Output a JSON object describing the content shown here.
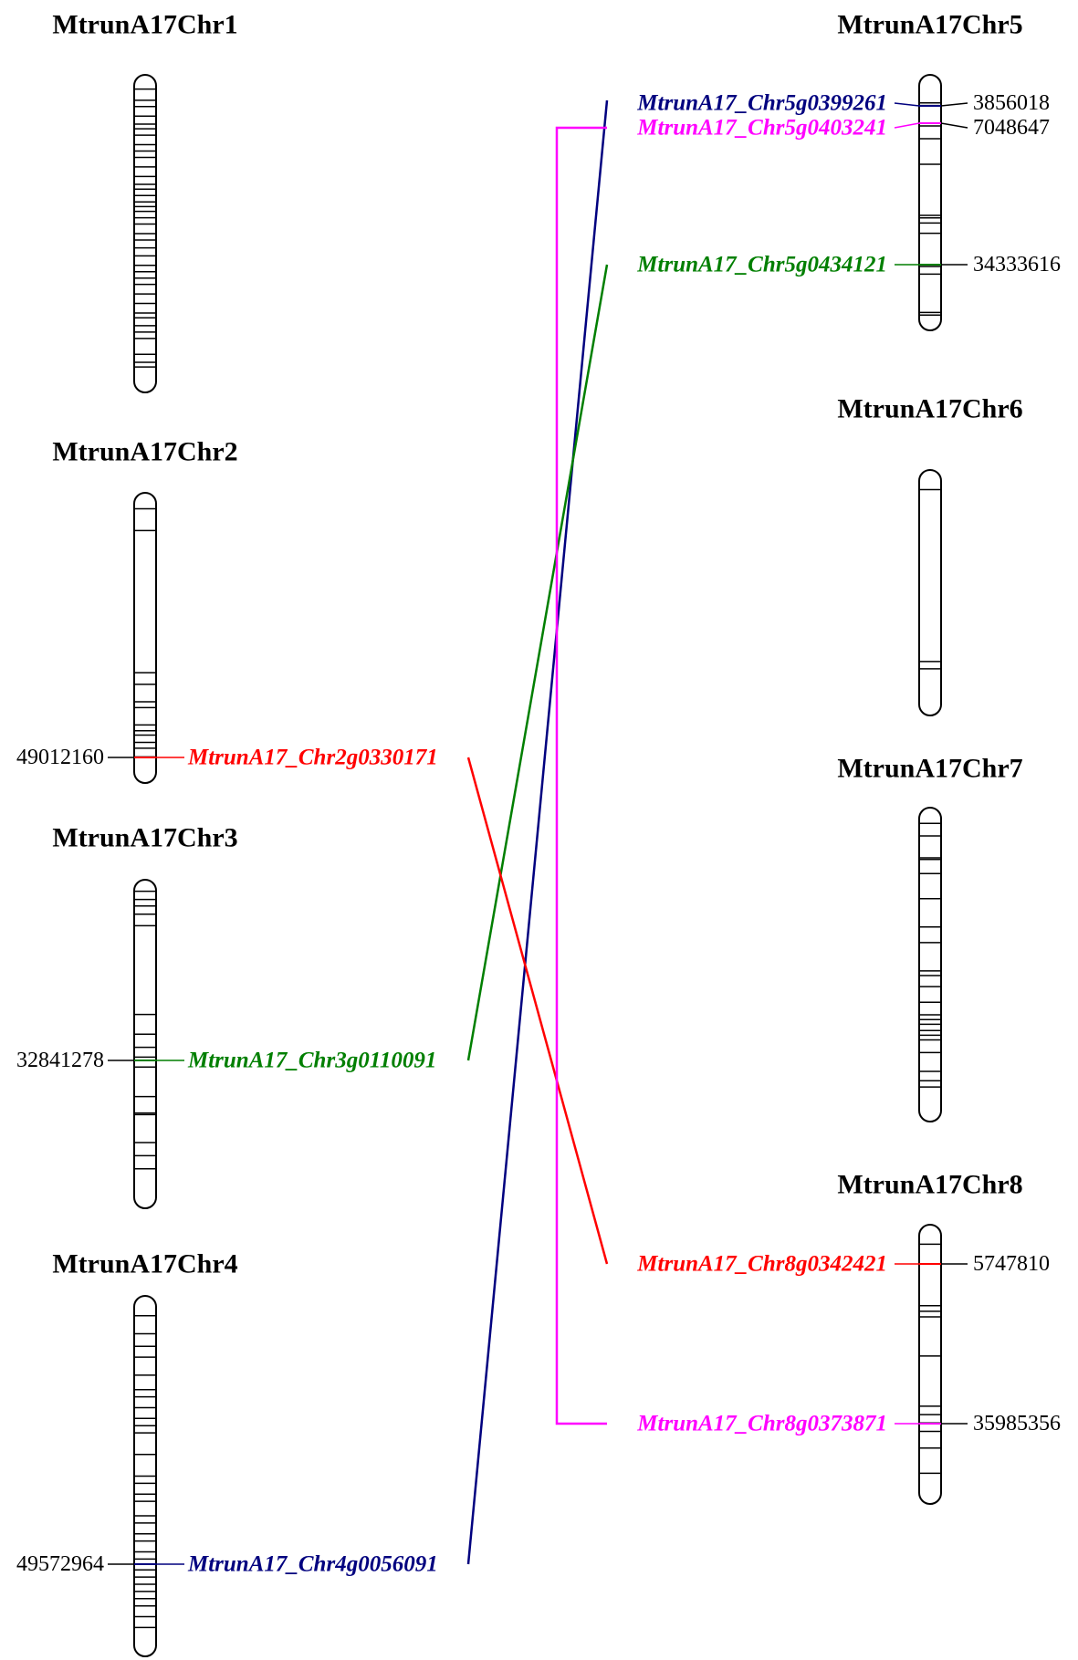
{
  "chromosomes": [
    {
      "id": "chr1",
      "name": "MtrunA17Chr1",
      "bands": [
        0.045,
        0.08,
        0.1,
        0.13,
        0.155,
        0.17,
        0.19,
        0.22,
        0.24,
        0.26,
        0.29,
        0.32,
        0.345,
        0.36,
        0.38,
        0.4,
        0.415,
        0.43,
        0.45,
        0.47,
        0.5,
        0.52,
        0.545,
        0.57,
        0.6,
        0.62,
        0.64,
        0.66,
        0.69,
        0.72,
        0.75,
        0.765,
        0.79,
        0.81,
        0.83,
        0.88,
        0.905,
        0.92
      ]
    },
    {
      "id": "chr2",
      "name": "MtrunA17Chr2",
      "bands": [
        0.055,
        0.13,
        0.62,
        0.66,
        0.72,
        0.74,
        0.8,
        0.82,
        0.835,
        0.86,
        0.88,
        0.91
      ]
    },
    {
      "id": "chr3",
      "name": "MtrunA17Chr3",
      "bands": [
        0.035,
        0.06,
        0.08,
        0.105,
        0.14,
        0.41,
        0.47,
        0.51,
        0.54,
        0.57,
        0.66,
        0.71,
        0.715,
        0.8,
        0.84,
        0.88
      ]
    },
    {
      "id": "chr4",
      "name": "MtrunA17Chr4",
      "bands": [
        0.055,
        0.105,
        0.14,
        0.17,
        0.22,
        0.26,
        0.28,
        0.31,
        0.34,
        0.36,
        0.38,
        0.44,
        0.5,
        0.52,
        0.55,
        0.57,
        0.61,
        0.63,
        0.66,
        0.68,
        0.71,
        0.73,
        0.76,
        0.78,
        0.8,
        0.82,
        0.84,
        0.86,
        0.89,
        0.92
      ]
    },
    {
      "id": "chr5",
      "name": "MtrunA17Chr5",
      "bands": [
        0.11,
        0.12,
        0.2,
        0.25,
        0.35,
        0.55,
        0.56,
        0.58,
        0.62,
        0.75,
        0.78,
        0.93,
        0.94
      ]
    },
    {
      "id": "chr6",
      "name": "MtrunA17Chr6",
      "bands": [
        0.08,
        0.78,
        0.81
      ]
    },
    {
      "id": "chr7",
      "name": "MtrunA17Chr7",
      "bands": [
        0.05,
        0.09,
        0.16,
        0.165,
        0.21,
        0.29,
        0.38,
        0.43,
        0.52,
        0.535,
        0.57,
        0.62,
        0.66,
        0.675,
        0.69,
        0.71,
        0.725,
        0.74,
        0.78,
        0.84,
        0.87,
        0.89
      ]
    },
    {
      "id": "chr8",
      "name": "MtrunA17Chr8",
      "bands": [
        0.07,
        0.14,
        0.29,
        0.31,
        0.33,
        0.47,
        0.65,
        0.68,
        0.71,
        0.74,
        0.8,
        0.89
      ]
    }
  ],
  "genes": [
    {
      "id": "chr5g0399261",
      "chromosome": "chr5",
      "name": "MtrunA17_Chr5g0399261",
      "position": "3856018",
      "color": "#00007f"
    },
    {
      "id": "chr5g0403241",
      "chromosome": "chr5",
      "name": "MtrunA17_Chr5g0403241",
      "position": "7048647",
      "color": "#ff00ff"
    },
    {
      "id": "chr5g0434121",
      "chromosome": "chr5",
      "name": "MtrunA17_Chr5g0434121",
      "position": "34333616",
      "color": "#007f00"
    },
    {
      "id": "chr2g0330171",
      "chromosome": "chr2",
      "name": "MtrunA17_Chr2g0330171",
      "position": "49012160",
      "color": "#ff0000"
    },
    {
      "id": "chr3g0110091",
      "chromosome": "chr3",
      "name": "MtrunA17_Chr3g0110091",
      "position": "32841278",
      "color": "#007f00"
    },
    {
      "id": "chr4g0056091",
      "chromosome": "chr4",
      "name": "MtrunA17_Chr4g0056091",
      "position": "49572964",
      "color": "#00007f"
    },
    {
      "id": "chr8g0342421",
      "chromosome": "chr8",
      "name": "MtrunA17_Chr8g0342421",
      "position": "5747810",
      "color": "#ff0000"
    },
    {
      "id": "chr8g0373871",
      "chromosome": "chr8",
      "name": "MtrunA17_Chr8g0373871",
      "position": "35985356",
      "color": "#ff00ff"
    }
  ],
  "duplication_pairs": [
    {
      "from": "chr4g0056091",
      "to": "chr5g0399261",
      "color": "#00007f"
    },
    {
      "from": "chr3g0110091",
      "to": "chr5g0434121",
      "color": "#007f00"
    },
    {
      "from": "chr2g0330171",
      "to": "chr8g0342421",
      "color": "#ff0000"
    },
    {
      "from": "chr5g0403241",
      "to": "chr8g0373871",
      "color": "#ff00ff"
    }
  ]
}
